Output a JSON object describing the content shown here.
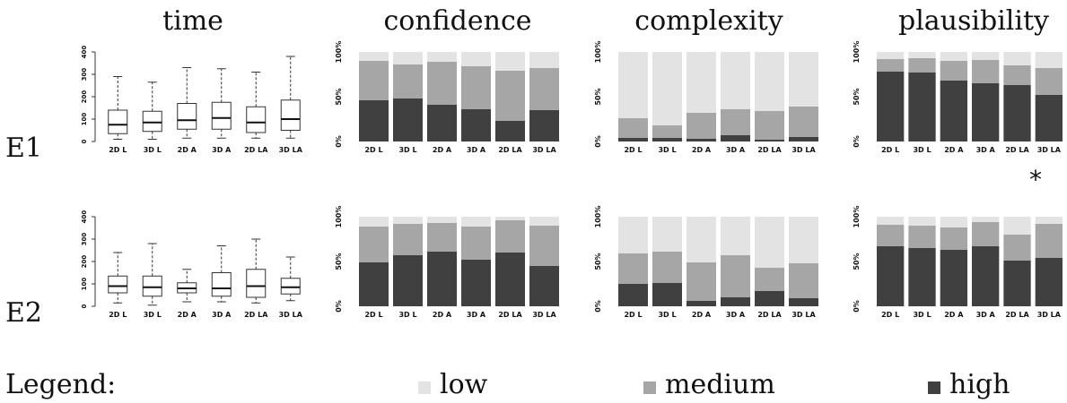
{
  "titles": {
    "time": "time",
    "confidence": "confidence",
    "complexity": "complexity",
    "plausibility": "plausibility"
  },
  "rows": {
    "e1": "E1",
    "e2": "E2"
  },
  "significance_mark": "*",
  "legend": {
    "title": "Legend:",
    "items": [
      {
        "label": "low",
        "color": "#e3e3e3"
      },
      {
        "label": "medium",
        "color": "#a6a6a6"
      },
      {
        "label": "high",
        "color": "#404040"
      }
    ]
  },
  "chart_data": [
    {
      "id": "time-e1",
      "type": "box",
      "title": "time",
      "row": "E1",
      "categories": [
        "2D L",
        "3D L",
        "2D A",
        "3D A",
        "2D LA",
        "3D LA"
      ],
      "yticks": [
        "0",
        "100",
        "200",
        "300",
        "400"
      ],
      "ylim": [
        0,
        400
      ],
      "boxes": [
        {
          "min": 10,
          "q1": 35,
          "median": 75,
          "q3": 140,
          "max": 290
        },
        {
          "min": 10,
          "q1": 45,
          "median": 85,
          "q3": 135,
          "max": 265
        },
        {
          "min": 15,
          "q1": 55,
          "median": 95,
          "q3": 170,
          "max": 330
        },
        {
          "min": 15,
          "q1": 55,
          "median": 105,
          "q3": 175,
          "max": 325
        },
        {
          "min": 15,
          "q1": 40,
          "median": 85,
          "q3": 155,
          "max": 310
        },
        {
          "min": 15,
          "q1": 50,
          "median": 100,
          "q3": 185,
          "max": 380
        }
      ]
    },
    {
      "id": "confidence-e1",
      "type": "stacked-bar",
      "title": "confidence",
      "row": "E1",
      "categories": [
        "2D L",
        "3D L",
        "2D A",
        "3D A",
        "2D LA",
        "3D LA"
      ],
      "yticks": [
        "0%",
        "50%",
        "100%"
      ],
      "series": [
        {
          "name": "high",
          "values": [
            46,
            48,
            41,
            36,
            23,
            35
          ]
        },
        {
          "name": "medium",
          "values": [
            44,
            38,
            48,
            48,
            56,
            47
          ]
        },
        {
          "name": "low",
          "values": [
            10,
            14,
            11,
            16,
            21,
            18
          ]
        }
      ]
    },
    {
      "id": "complexity-e1",
      "type": "stacked-bar",
      "title": "complexity",
      "row": "E1",
      "categories": [
        "2D L",
        "3D L",
        "2D A",
        "3D A",
        "2D LA",
        "3D LA"
      ],
      "yticks": [
        "0%",
        "50%",
        "100%"
      ],
      "series": [
        {
          "name": "high",
          "values": [
            4,
            4,
            3,
            7,
            2,
            5
          ]
        },
        {
          "name": "medium",
          "values": [
            22,
            14,
            29,
            29,
            32,
            34
          ]
        },
        {
          "name": "low",
          "values": [
            74,
            82,
            68,
            64,
            66,
            61
          ]
        }
      ]
    },
    {
      "id": "plausibility-e1",
      "type": "stacked-bar",
      "title": "plausibility",
      "row": "E1",
      "categories": [
        "2D L",
        "3D L",
        "2D A",
        "3D A",
        "2D LA",
        "3D LA"
      ],
      "yticks": [
        "0%",
        "50%",
        "100%"
      ],
      "series": [
        {
          "name": "high",
          "values": [
            78,
            77,
            68,
            65,
            63,
            52
          ]
        },
        {
          "name": "medium",
          "values": [
            14,
            16,
            22,
            26,
            22,
            30
          ]
        },
        {
          "name": "low",
          "values": [
            8,
            7,
            10,
            9,
            15,
            18
          ]
        }
      ]
    },
    {
      "id": "time-e2",
      "type": "box",
      "title": "time",
      "row": "E2",
      "categories": [
        "2D L",
        "3D L",
        "2D A",
        "3D A",
        "2D LA",
        "3D LA"
      ],
      "yticks": [
        "0",
        "100",
        "200",
        "300",
        "400"
      ],
      "ylim": [
        0,
        400
      ],
      "boxes": [
        {
          "min": 15,
          "q1": 60,
          "median": 90,
          "q3": 135,
          "max": 240
        },
        {
          "min": 5,
          "q1": 45,
          "median": 85,
          "q3": 135,
          "max": 280
        },
        {
          "min": 20,
          "q1": 60,
          "median": 80,
          "q3": 105,
          "max": 165
        },
        {
          "min": 20,
          "q1": 45,
          "median": 80,
          "q3": 150,
          "max": 270
        },
        {
          "min": 15,
          "q1": 40,
          "median": 90,
          "q3": 165,
          "max": 300
        },
        {
          "min": 25,
          "q1": 55,
          "median": 85,
          "q3": 125,
          "max": 220
        }
      ]
    },
    {
      "id": "confidence-e2",
      "type": "stacked-bar",
      "title": "confidence",
      "row": "E2",
      "categories": [
        "2D L",
        "3D L",
        "2D A",
        "3D A",
        "2D LA",
        "3D LA"
      ],
      "yticks": [
        "0%",
        "50%",
        "100%"
      ],
      "series": [
        {
          "name": "high",
          "values": [
            49,
            57,
            61,
            52,
            60,
            45
          ]
        },
        {
          "name": "medium",
          "values": [
            40,
            35,
            32,
            37,
            36,
            45
          ]
        },
        {
          "name": "low",
          "values": [
            11,
            8,
            7,
            11,
            4,
            10
          ]
        }
      ]
    },
    {
      "id": "complexity-e2",
      "type": "stacked-bar",
      "title": "complexity",
      "row": "E2",
      "categories": [
        "2D L",
        "3D L",
        "2D A",
        "3D A",
        "2D LA",
        "3D LA"
      ],
      "yticks": [
        "0%",
        "50%",
        "100%"
      ],
      "series": [
        {
          "name": "high",
          "values": [
            25,
            26,
            6,
            10,
            17,
            9
          ]
        },
        {
          "name": "medium",
          "values": [
            34,
            35,
            43,
            47,
            26,
            39
          ]
        },
        {
          "name": "low",
          "values": [
            41,
            39,
            51,
            43,
            57,
            52
          ]
        }
      ]
    },
    {
      "id": "plausibility-e2",
      "type": "stacked-bar",
      "title": "plausibility",
      "row": "E2",
      "categories": [
        "2D L",
        "3D L",
        "2D A",
        "3D A",
        "2D LA",
        "3D LA"
      ],
      "yticks": [
        "0%",
        "50%",
        "100%"
      ],
      "series": [
        {
          "name": "high",
          "values": [
            67,
            65,
            63,
            67,
            51,
            54
          ]
        },
        {
          "name": "medium",
          "values": [
            24,
            25,
            25,
            27,
            29,
            38
          ]
        },
        {
          "name": "low",
          "values": [
            9,
            10,
            12,
            6,
            20,
            8
          ]
        }
      ]
    }
  ]
}
